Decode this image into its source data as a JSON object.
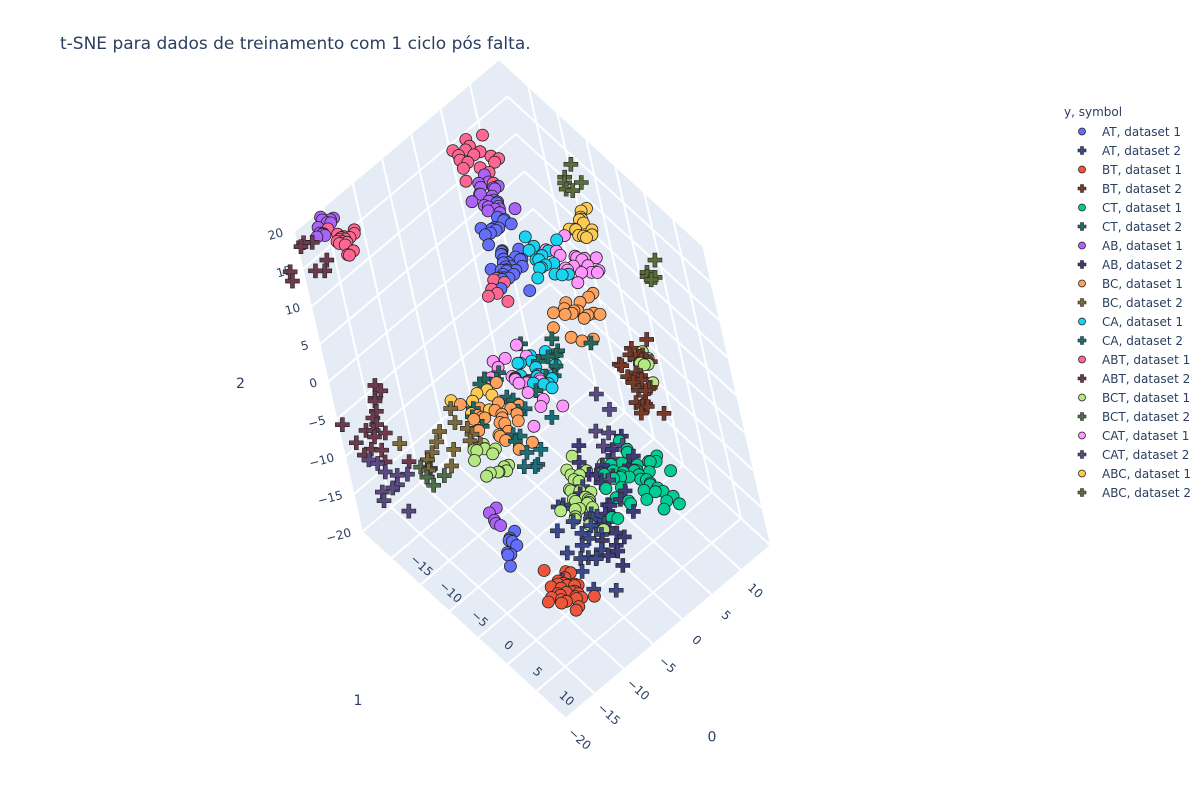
{
  "chart_data": {
    "type": "scatter3d",
    "title": "t-SNE para dados de treinamento com 1 ciclo pós falta.",
    "legend_title": "y, symbol",
    "legend_position": "top-right",
    "axes": {
      "x": {
        "label": "0",
        "range": [
          -20,
          15
        ],
        "ticks": [
          -15,
          -10,
          -5,
          0,
          5,
          10
        ],
        "tick_labels": [
          "−15",
          "−10",
          "−5",
          "0",
          "5",
          "10"
        ]
      },
      "y": {
        "label": "1",
        "range": [
          -20,
          15
        ],
        "ticks": [
          -20,
          -15,
          -10,
          -5,
          0,
          5,
          10
        ],
        "tick_labels": [
          "−20",
          "−15",
          "−10",
          "−5",
          "0",
          "5",
          "10"
        ]
      },
      "z": {
        "label": "2",
        "range": [
          -20,
          20
        ],
        "ticks": [
          -20,
          -15,
          -10,
          -5,
          0,
          5,
          10,
          15,
          20
        ],
        "tick_labels": [
          "−20",
          "−15",
          "−10",
          "−5",
          "0",
          "5",
          "10",
          "15",
          "20"
        ]
      }
    },
    "series": [
      {
        "name": "AT, dataset 1",
        "symbol": "circle",
        "color": "#636efa",
        "clusters": [
          [
            -9,
            2,
            9,
            28,
            2.2
          ],
          [
            -11,
            3,
            12,
            12,
            1.5
          ],
          [
            6,
            -16,
            -6,
            10,
            1.2
          ]
        ]
      },
      {
        "name": "AT, dataset 2",
        "symbol": "cross",
        "color": "#3b4a8a",
        "clusters": [
          [
            7,
            -6,
            -9,
            18,
            3.5
          ],
          [
            10,
            -9,
            -11,
            10,
            2.5
          ]
        ]
      },
      {
        "name": "BT, dataset 1",
        "symbol": "circle",
        "color": "#ef553b",
        "clusters": [
          [
            10,
            -12,
            -12,
            30,
            1.8
          ]
        ]
      },
      {
        "name": "BT, dataset 2",
        "symbol": "cross",
        "color": "#7a3a2a",
        "clusters": [
          [
            5,
            8,
            -2,
            20,
            2.5
          ],
          [
            4,
            10,
            0,
            10,
            2
          ]
        ]
      },
      {
        "name": "CT, dataset 1",
        "symbol": "circle",
        "color": "#00cc96",
        "clusters": [
          [
            6,
            3,
            -10,
            30,
            3
          ],
          [
            8,
            6,
            -12,
            12,
            2
          ]
        ]
      },
      {
        "name": "CT, dataset 2",
        "symbol": "cross",
        "color": "#1f6b63",
        "clusters": [
          [
            0,
            0,
            2,
            12,
            4
          ],
          [
            -2,
            -8,
            1,
            8,
            3
          ]
        ]
      },
      {
        "name": "AB, dataset 1",
        "symbol": "circle",
        "color": "#ab63fa",
        "clusters": [
          [
            -11,
            3,
            15,
            22,
            2
          ],
          [
            -22,
            -14,
            15,
            12,
            1.2
          ],
          [
            -3,
            -12,
            -12,
            5,
            1
          ]
        ]
      },
      {
        "name": "AB, dataset 2",
        "symbol": "cross",
        "color": "#3f3a7a",
        "clusters": [
          [
            5,
            0,
            -9,
            22,
            4
          ],
          [
            9,
            -4,
            -12,
            8,
            2
          ]
        ]
      },
      {
        "name": "BC, dataset 1",
        "symbol": "circle",
        "color": "#ffa15a",
        "clusters": [
          [
            -2,
            5,
            5,
            18,
            2.5
          ],
          [
            -4,
            -6,
            -3,
            18,
            2.5
          ],
          [
            -4,
            -11,
            1,
            6,
            1.5
          ]
        ]
      },
      {
        "name": "BC, dataset 2",
        "symbol": "cross",
        "color": "#7d6a3a",
        "clusters": [
          [
            -6,
            -12,
            -2,
            10,
            3
          ],
          [
            -8,
            -17,
            -4,
            6,
            2
          ]
        ]
      },
      {
        "name": "CA, dataset 1",
        "symbol": "circle",
        "color": "#19d3f3",
        "clusters": [
          [
            -4,
            5,
            11,
            16,
            2
          ],
          [
            -1,
            -2,
            3,
            18,
            2
          ]
        ]
      },
      {
        "name": "CA, dataset 2",
        "symbol": "cross",
        "color": "#1a6f7a",
        "clusters": [
          [
            -2,
            -6,
            -3,
            12,
            4
          ]
        ]
      },
      {
        "name": "ABT, dataset 1",
        "symbol": "circle",
        "color": "#ff6692",
        "clusters": [
          [
            -14,
            4,
            18,
            18,
            2
          ],
          [
            -22,
            -12,
            12,
            18,
            1.5
          ],
          [
            -8,
            0,
            8,
            8,
            1.5
          ]
        ]
      },
      {
        "name": "ABT, dataset 2",
        "symbol": "cross",
        "color": "#6e3a4e",
        "clusters": [
          [
            -14,
            -18,
            -3,
            18,
            3
          ],
          [
            -24,
            -16,
            10,
            8,
            2
          ]
        ]
      },
      {
        "name": "BCT, dataset 1",
        "symbol": "circle",
        "color": "#b6e880",
        "clusters": [
          [
            3,
            -2,
            -10,
            28,
            2.5
          ],
          [
            -3,
            -10,
            -4,
            14,
            2
          ],
          [
            5,
            10,
            1,
            6,
            1.5
          ]
        ]
      },
      {
        "name": "BCT, dataset 2",
        "symbol": "cross",
        "color": "#4e6e4a",
        "clusters": [
          [
            -8,
            -16,
            -5,
            6,
            2
          ]
        ]
      },
      {
        "name": "CAT, dataset 1",
        "symbol": "circle",
        "color": "#ff97ff",
        "clusters": [
          [
            -3,
            8,
            9,
            18,
            2.5
          ],
          [
            -2,
            -4,
            2,
            20,
            3
          ]
        ]
      },
      {
        "name": "CAT, dataset 2",
        "symbol": "cross",
        "color": "#5a4a82",
        "clusters": [
          [
            -10,
            -22,
            -6,
            10,
            3
          ],
          [
            5,
            2,
            -3,
            8,
            3
          ]
        ]
      },
      {
        "name": "ABC, dataset 1",
        "symbol": "circle",
        "color": "#fecb52",
        "clusters": [
          [
            -4,
            11,
            12,
            14,
            1.5
          ],
          [
            -6,
            -8,
            -2,
            8,
            2
          ]
        ]
      },
      {
        "name": "ABC, dataset 2",
        "symbol": "cross",
        "color": "#5a6e3a",
        "clusters": [
          [
            -6,
            12,
            16,
            6,
            1.5
          ],
          [
            0,
            16,
            5,
            5,
            1.5
          ]
        ]
      }
    ]
  }
}
